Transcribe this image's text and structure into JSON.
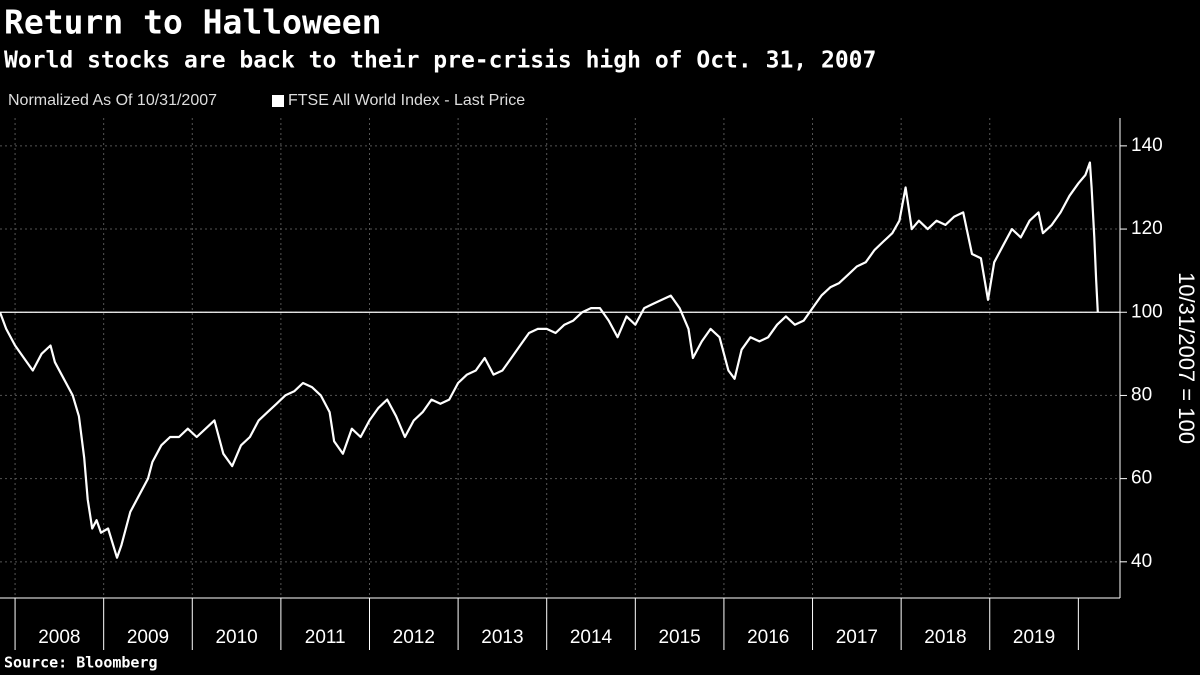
{
  "chart_data": {
    "type": "line",
    "title": "Return to Halloween",
    "subtitle": "World stocks are back to their pre-crisis high of Oct. 31, 2007",
    "legend_note": "Normalized As Of 10/31/2007",
    "y_axis_label": "10/31/2007 = 100",
    "source": "Source: Bloomberg",
    "xlim": [
      2007.83,
      2020.47
    ],
    "xticks": [
      {
        "value": 2008,
        "label": "2008"
      },
      {
        "value": 2009,
        "label": "2009"
      },
      {
        "value": 2010,
        "label": "2010"
      },
      {
        "value": 2011,
        "label": "2011"
      },
      {
        "value": 2012,
        "label": "2012"
      },
      {
        "value": 2013,
        "label": "2013"
      },
      {
        "value": 2014,
        "label": "2014"
      },
      {
        "value": 2015,
        "label": "2015"
      },
      {
        "value": 2016,
        "label": "2016"
      },
      {
        "value": 2017,
        "label": "2017"
      },
      {
        "value": 2018,
        "label": "2018"
      },
      {
        "value": 2019,
        "label": "2019"
      }
    ],
    "ylim": [
      31.3,
      146.7
    ],
    "yticks": [
      40,
      60,
      80,
      100,
      120,
      140
    ],
    "reference_line": 100,
    "grid": true,
    "series": [
      {
        "name": "FTSE All World Index - Last Price",
        "color": "#ffffff",
        "x": [
          2007.83,
          2007.9,
          2008.0,
          2008.1,
          2008.2,
          2008.3,
          2008.4,
          2008.45,
          2008.55,
          2008.65,
          2008.72,
          2008.78,
          2008.82,
          2008.87,
          2008.92,
          2008.97,
          2009.05,
          2009.15,
          2009.2,
          2009.3,
          2009.4,
          2009.5,
          2009.55,
          2009.65,
          2009.75,
          2009.85,
          2009.95,
          2010.05,
          2010.15,
          2010.25,
          2010.35,
          2010.45,
          2010.55,
          2010.65,
          2010.75,
          2010.85,
          2010.95,
          2011.05,
          2011.15,
          2011.25,
          2011.35,
          2011.45,
          2011.55,
          2011.6,
          2011.7,
          2011.8,
          2011.9,
          2012.0,
          2012.1,
          2012.2,
          2012.3,
          2012.4,
          2012.5,
          2012.6,
          2012.7,
          2012.8,
          2012.9,
          2013.0,
          2013.1,
          2013.2,
          2013.3,
          2013.4,
          2013.5,
          2013.6,
          2013.7,
          2013.8,
          2013.9,
          2014.0,
          2014.1,
          2014.2,
          2014.3,
          2014.4,
          2014.5,
          2014.6,
          2014.7,
          2014.8,
          2014.9,
          2015.0,
          2015.1,
          2015.2,
          2015.3,
          2015.4,
          2015.5,
          2015.6,
          2015.65,
          2015.75,
          2015.85,
          2015.95,
          2016.05,
          2016.12,
          2016.2,
          2016.3,
          2016.4,
          2016.5,
          2016.6,
          2016.7,
          2016.8,
          2016.9,
          2017.0,
          2017.1,
          2017.2,
          2017.3,
          2017.4,
          2017.5,
          2017.6,
          2017.7,
          2017.8,
          2017.9,
          2017.98,
          2018.05,
          2018.12,
          2018.2,
          2018.3,
          2018.4,
          2018.5,
          2018.6,
          2018.7,
          2018.8,
          2018.9,
          2018.98,
          2019.05,
          2019.15,
          2019.25,
          2019.35,
          2019.45,
          2019.55,
          2019.6,
          2019.7,
          2019.8,
          2019.9,
          2020.0,
          2020.08,
          2020.13,
          2020.15,
          2020.18,
          2020.2,
          2020.22
        ],
        "values": [
          100,
          96,
          92,
          89,
          86,
          90,
          92,
          88,
          84,
          80,
          75,
          65,
          55,
          48,
          50,
          47,
          48,
          41,
          44,
          52,
          56,
          60,
          64,
          68,
          70,
          70,
          72,
          70,
          72,
          74,
          66,
          63,
          68,
          70,
          74,
          76,
          78,
          80,
          81,
          83,
          82,
          80,
          76,
          69,
          66,
          72,
          70,
          74,
          77,
          79,
          75,
          70,
          74,
          76,
          79,
          78,
          79,
          83,
          85,
          86,
          89,
          85,
          86,
          89,
          92,
          95,
          96,
          96,
          95,
          97,
          98,
          100,
          101,
          101,
          98,
          94,
          99,
          97,
          101,
          102,
          103,
          104,
          101,
          96,
          89,
          93,
          96,
          94,
          86,
          84,
          91,
          94,
          93,
          94,
          97,
          99,
          97,
          98,
          101,
          104,
          106,
          107,
          109,
          111,
          112,
          115,
          117,
          119,
          122,
          130,
          120,
          122,
          120,
          122,
          121,
          123,
          124,
          114,
          113,
          103,
          112,
          116,
          120,
          118,
          122,
          124,
          119,
          121,
          124,
          128,
          131,
          133,
          136,
          130,
          118,
          108,
          100
        ]
      }
    ]
  }
}
